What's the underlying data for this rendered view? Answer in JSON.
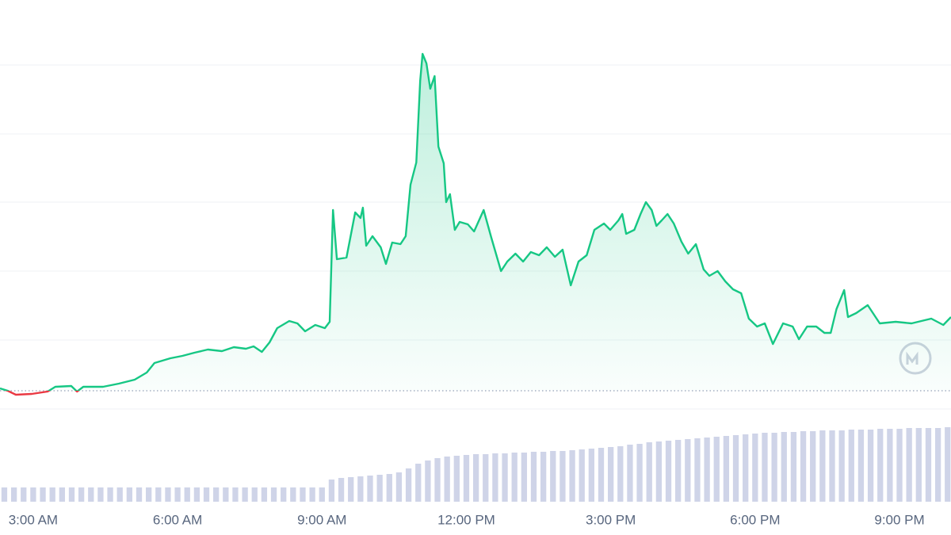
{
  "chart_data": {
    "type": "line",
    "xlim": [
      2.31,
      22.07
    ],
    "xticks": [
      {
        "value": 3,
        "label": "3:00 AM"
      },
      {
        "value": 6,
        "label": "6:00 AM"
      },
      {
        "value": 9,
        "label": "9:00 AM"
      },
      {
        "value": 12,
        "label": "12:00 PM"
      },
      {
        "value": 15,
        "label": "3:00 PM"
      },
      {
        "value": 18,
        "label": "6:00 PM"
      },
      {
        "value": 21,
        "label": "9:00 PM"
      }
    ],
    "ylim": [
      0,
      516
    ],
    "gridlines": [
      87,
      174,
      261,
      347,
      434
    ],
    "baseline": 23,
    "up_color": "#16c784",
    "down_color": "#ea3943",
    "price": {
      "x": [
        2.31,
        2.47,
        2.64,
        2.97,
        3.3,
        3.46,
        3.79,
        3.91,
        4.04,
        4.45,
        4.78,
        5.11,
        5.36,
        5.52,
        5.85,
        6.1,
        6.35,
        6.63,
        6.92,
        7.17,
        7.42,
        7.58,
        7.75,
        7.91,
        8.07,
        8.32,
        8.49,
        8.65,
        8.86,
        9.06,
        9.16,
        9.23,
        9.31,
        9.51,
        9.69,
        9.8,
        9.85,
        9.92,
        10.05,
        10.22,
        10.33,
        10.46,
        10.63,
        10.74,
        10.84,
        10.96,
        11.04,
        11.09,
        11.17,
        11.25,
        11.34,
        11.42,
        11.53,
        11.58,
        11.66,
        11.76,
        11.86,
        12.03,
        12.16,
        12.36,
        12.52,
        12.72,
        12.85,
        13.02,
        13.18,
        13.34,
        13.51,
        13.67,
        13.84,
        14.0,
        14.17,
        14.33,
        14.5,
        14.66,
        14.86,
        14.99,
        15.16,
        15.24,
        15.32,
        15.49,
        15.62,
        15.73,
        15.85,
        15.95,
        16.06,
        16.18,
        16.31,
        16.47,
        16.61,
        16.77,
        16.93,
        17.05,
        17.22,
        17.38,
        17.54,
        17.71,
        17.87,
        18.04,
        18.2,
        18.37,
        18.58,
        18.78,
        18.91,
        19.08,
        19.27,
        19.44,
        19.57,
        19.69,
        19.85,
        19.93,
        20.1,
        20.34,
        20.59,
        20.92,
        21.25,
        21.66,
        21.91,
        22.07
      ],
      "values": [
        26,
        23,
        18,
        19,
        22,
        28,
        29,
        22,
        28,
        28,
        32,
        37,
        46,
        58,
        64,
        67,
        71,
        75,
        73,
        78,
        76,
        79,
        72,
        84,
        102,
        111,
        108,
        98,
        106,
        102,
        110,
        251,
        189,
        191,
        248,
        241,
        254,
        206,
        218,
        204,
        183,
        210,
        208,
        218,
        283,
        311,
        414,
        448,
        436,
        404,
        420,
        331,
        310,
        261,
        271,
        226,
        236,
        233,
        224,
        251,
        216,
        174,
        186,
        196,
        186,
        198,
        194,
        204,
        192,
        201,
        156,
        186,
        194,
        226,
        234,
        226,
        238,
        246,
        221,
        226,
        246,
        261,
        251,
        231,
        238,
        246,
        234,
        211,
        196,
        208,
        176,
        168,
        174,
        161,
        151,
        146,
        114,
        104,
        108,
        82,
        108,
        104,
        88,
        104,
        104,
        96,
        96,
        126,
        150,
        116,
        121,
        131,
        108,
        110,
        108,
        114,
        106,
        116
      ]
    },
    "volume": {
      "color": "#cfd4e8",
      "vlim": [
        0,
        115
      ],
      "x": [
        2.4,
        2.6,
        2.8,
        3.0,
        3.2,
        3.4,
        3.6,
        3.8,
        4.0,
        4.2,
        4.4,
        4.6,
        4.8,
        5.0,
        5.2,
        5.4,
        5.6,
        5.8,
        6.0,
        6.2,
        6.4,
        6.6,
        6.8,
        7.0,
        7.2,
        7.4,
        7.6,
        7.8,
        8.0,
        8.2,
        8.4,
        8.6,
        8.8,
        9.0,
        9.2,
        9.4,
        9.6,
        9.8,
        10.0,
        10.2,
        10.4,
        10.6,
        10.8,
        11.0,
        11.2,
        11.4,
        11.6,
        11.8,
        12.0,
        12.2,
        12.4,
        12.6,
        12.8,
        13.0,
        13.2,
        13.4,
        13.6,
        13.8,
        14.0,
        14.2,
        14.4,
        14.6,
        14.8,
        15.0,
        15.2,
        15.4,
        15.6,
        15.8,
        16.0,
        16.2,
        16.4,
        16.6,
        16.8,
        17.0,
        17.2,
        17.4,
        17.6,
        17.8,
        18.0,
        18.2,
        18.4,
        18.6,
        18.8,
        19.0,
        19.2,
        19.4,
        19.6,
        19.8,
        20.0,
        20.2,
        20.4,
        20.6,
        20.8,
        21.0,
        21.2,
        21.4,
        21.6,
        21.8,
        22.0
      ],
      "values": [
        18,
        18,
        18,
        18,
        18,
        18,
        18,
        18,
        18,
        18,
        18,
        18,
        18,
        18,
        18,
        18,
        18,
        18,
        18,
        18,
        18,
        18,
        18,
        18,
        18,
        18,
        18,
        18,
        18,
        18,
        18,
        18,
        18,
        18,
        28,
        30,
        31,
        32,
        33,
        34,
        35,
        37,
        42,
        48,
        52,
        55,
        57,
        58,
        59,
        60,
        60,
        61,
        61,
        62,
        62,
        63,
        63,
        64,
        64,
        65,
        66,
        67,
        68,
        69,
        70,
        72,
        73,
        75,
        76,
        77,
        78,
        79,
        80,
        81,
        82,
        83,
        84,
        85,
        86,
        87,
        87,
        88,
        88,
        89,
        89,
        90,
        90,
        90,
        91,
        91,
        91,
        92,
        92,
        92,
        93,
        93,
        93,
        93,
        94
      ]
    }
  }
}
